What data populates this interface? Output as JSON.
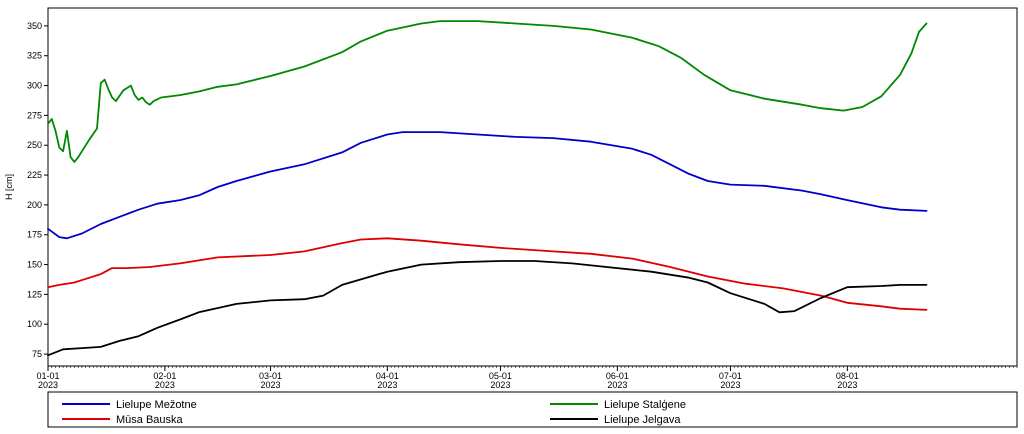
{
  "chart_data": {
    "type": "line",
    "ylabel": "H [cm]",
    "ylim": [
      65,
      365
    ],
    "yticks": [
      75,
      100,
      125,
      150,
      175,
      200,
      225,
      250,
      275,
      300,
      325,
      350
    ],
    "xlim": [
      "2023-01-01",
      "2023-09-15"
    ],
    "xticks": [
      {
        "date": "2023-01-01",
        "label": "01-01",
        "year": "2023"
      },
      {
        "date": "2023-02-01",
        "label": "02-01",
        "year": "2023"
      },
      {
        "date": "2023-03-01",
        "label": "03-01",
        "year": "2023"
      },
      {
        "date": "2023-04-01",
        "label": "04-01",
        "year": "2023"
      },
      {
        "date": "2023-05-01",
        "label": "05-01",
        "year": "2023"
      },
      {
        "date": "2023-06-01",
        "label": "06-01",
        "year": "2023"
      },
      {
        "date": "2023-07-01",
        "label": "07-01",
        "year": "2023"
      },
      {
        "date": "2023-08-01",
        "label": "08-01",
        "year": "2023"
      }
    ],
    "grid": false,
    "legend": "bottom",
    "series": [
      {
        "name": "Lielupe Mežotne",
        "color": "#0000cc",
        "points": [
          [
            "2023-01-01",
            180
          ],
          [
            "2023-01-04",
            173
          ],
          [
            "2023-01-06",
            172
          ],
          [
            "2023-01-10",
            176
          ],
          [
            "2023-01-15",
            184
          ],
          [
            "2023-01-20",
            190
          ],
          [
            "2023-01-25",
            196
          ],
          [
            "2023-01-30",
            201
          ],
          [
            "2023-02-05",
            204
          ],
          [
            "2023-02-10",
            208
          ],
          [
            "2023-02-15",
            215
          ],
          [
            "2023-02-20",
            220
          ],
          [
            "2023-03-01",
            228
          ],
          [
            "2023-03-10",
            234
          ],
          [
            "2023-03-20",
            244
          ],
          [
            "2023-03-25",
            252
          ],
          [
            "2023-04-01",
            259
          ],
          [
            "2023-04-05",
            261
          ],
          [
            "2023-04-15",
            261
          ],
          [
            "2023-04-25",
            259
          ],
          [
            "2023-05-05",
            257
          ],
          [
            "2023-05-15",
            256
          ],
          [
            "2023-05-25",
            253
          ],
          [
            "2023-06-05",
            247
          ],
          [
            "2023-06-10",
            242
          ],
          [
            "2023-06-15",
            234
          ],
          [
            "2023-06-20",
            226
          ],
          [
            "2023-06-25",
            220
          ],
          [
            "2023-07-01",
            217
          ],
          [
            "2023-07-10",
            216
          ],
          [
            "2023-07-20",
            212
          ],
          [
            "2023-07-25",
            209
          ],
          [
            "2023-08-01",
            204
          ],
          [
            "2023-08-10",
            198
          ],
          [
            "2023-08-15",
            196
          ],
          [
            "2023-08-22",
            195
          ]
        ]
      },
      {
        "name": "Lielupe Stalģene",
        "color": "#008800",
        "points": [
          [
            "2023-01-01",
            268
          ],
          [
            "2023-01-02",
            272
          ],
          [
            "2023-01-03",
            262
          ],
          [
            "2023-01-04",
            248
          ],
          [
            "2023-01-05",
            245
          ],
          [
            "2023-01-06",
            262
          ],
          [
            "2023-01-07",
            240
          ],
          [
            "2023-01-08",
            236
          ],
          [
            "2023-01-09",
            240
          ],
          [
            "2023-01-12",
            255
          ],
          [
            "2023-01-14",
            264
          ],
          [
            "2023-01-15",
            302
          ],
          [
            "2023-01-16",
            305
          ],
          [
            "2023-01-17",
            297
          ],
          [
            "2023-01-18",
            290
          ],
          [
            "2023-01-19",
            287
          ],
          [
            "2023-01-21",
            296
          ],
          [
            "2023-01-23",
            300
          ],
          [
            "2023-01-24",
            292
          ],
          [
            "2023-01-25",
            288
          ],
          [
            "2023-01-26",
            290
          ],
          [
            "2023-01-27",
            286
          ],
          [
            "2023-01-28",
            284
          ],
          [
            "2023-01-29",
            287
          ],
          [
            "2023-01-31",
            290
          ],
          [
            "2023-02-05",
            292
          ],
          [
            "2023-02-10",
            295
          ],
          [
            "2023-02-15",
            299
          ],
          [
            "2023-02-20",
            301
          ],
          [
            "2023-03-01",
            308
          ],
          [
            "2023-03-10",
            316
          ],
          [
            "2023-03-20",
            328
          ],
          [
            "2023-03-25",
            337
          ],
          [
            "2023-04-01",
            346
          ],
          [
            "2023-04-10",
            352
          ],
          [
            "2023-04-15",
            354
          ],
          [
            "2023-04-25",
            354
          ],
          [
            "2023-05-05",
            352
          ],
          [
            "2023-05-15",
            350
          ],
          [
            "2023-05-25",
            347
          ],
          [
            "2023-06-05",
            340
          ],
          [
            "2023-06-12",
            333
          ],
          [
            "2023-06-18",
            323
          ],
          [
            "2023-06-24",
            309
          ],
          [
            "2023-07-01",
            296
          ],
          [
            "2023-07-10",
            289
          ],
          [
            "2023-07-20",
            284
          ],
          [
            "2023-07-25",
            281
          ],
          [
            "2023-07-31",
            279
          ],
          [
            "2023-08-05",
            282
          ],
          [
            "2023-08-10",
            291
          ],
          [
            "2023-08-15",
            309
          ],
          [
            "2023-08-18",
            327
          ],
          [
            "2023-08-20",
            345
          ],
          [
            "2023-08-22",
            352
          ]
        ]
      },
      {
        "name": "Mūsa Bauska",
        "color": "#dd0000",
        "points": [
          [
            "2023-01-01",
            131
          ],
          [
            "2023-01-04",
            133
          ],
          [
            "2023-01-08",
            135
          ],
          [
            "2023-01-12",
            139
          ],
          [
            "2023-01-15",
            142
          ],
          [
            "2023-01-18",
            147
          ],
          [
            "2023-01-22",
            147
          ],
          [
            "2023-01-28",
            148
          ],
          [
            "2023-02-05",
            151
          ],
          [
            "2023-02-15",
            156
          ],
          [
            "2023-03-01",
            158
          ],
          [
            "2023-03-10",
            161
          ],
          [
            "2023-03-20",
            168
          ],
          [
            "2023-03-25",
            171
          ],
          [
            "2023-04-01",
            172
          ],
          [
            "2023-04-10",
            170
          ],
          [
            "2023-04-20",
            167
          ],
          [
            "2023-05-01",
            164
          ],
          [
            "2023-05-15",
            161
          ],
          [
            "2023-05-25",
            159
          ],
          [
            "2023-06-05",
            155
          ],
          [
            "2023-06-15",
            148
          ],
          [
            "2023-06-25",
            140
          ],
          [
            "2023-07-05",
            134
          ],
          [
            "2023-07-15",
            130
          ],
          [
            "2023-07-25",
            124
          ],
          [
            "2023-08-01",
            118
          ],
          [
            "2023-08-10",
            115
          ],
          [
            "2023-08-15",
            113
          ],
          [
            "2023-08-22",
            112
          ]
        ]
      },
      {
        "name": "Lielupe Jelgava",
        "color": "#000000",
        "points": [
          [
            "2023-01-01",
            74
          ],
          [
            "2023-01-05",
            79
          ],
          [
            "2023-01-10",
            80
          ],
          [
            "2023-01-15",
            81
          ],
          [
            "2023-01-20",
            86
          ],
          [
            "2023-01-25",
            90
          ],
          [
            "2023-01-30",
            97
          ],
          [
            "2023-02-05",
            104
          ],
          [
            "2023-02-10",
            110
          ],
          [
            "2023-02-20",
            117
          ],
          [
            "2023-03-01",
            120
          ],
          [
            "2023-03-10",
            121
          ],
          [
            "2023-03-15",
            124
          ],
          [
            "2023-03-20",
            133
          ],
          [
            "2023-04-01",
            144
          ],
          [
            "2023-04-10",
            150
          ],
          [
            "2023-04-20",
            152
          ],
          [
            "2023-05-01",
            153
          ],
          [
            "2023-05-10",
            153
          ],
          [
            "2023-05-20",
            151
          ],
          [
            "2023-06-01",
            147
          ],
          [
            "2023-06-10",
            144
          ],
          [
            "2023-06-20",
            139
          ],
          [
            "2023-06-25",
            135
          ],
          [
            "2023-07-01",
            126
          ],
          [
            "2023-07-10",
            117
          ],
          [
            "2023-07-14",
            110
          ],
          [
            "2023-07-18",
            111
          ],
          [
            "2023-07-25",
            122
          ],
          [
            "2023-08-01",
            131
          ],
          [
            "2023-08-10",
            132
          ],
          [
            "2023-08-15",
            133
          ],
          [
            "2023-08-22",
            133
          ]
        ]
      }
    ]
  }
}
